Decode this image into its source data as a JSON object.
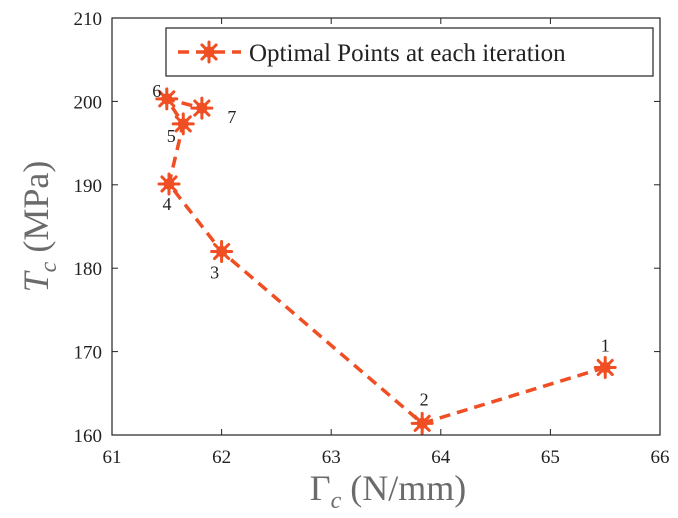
{
  "chart_data": {
    "type": "line",
    "title": "",
    "xlabel": {
      "main": "Γ",
      "sub": "c",
      "unit": " (N/mm)"
    },
    "ylabel": {
      "main": "T",
      "sub": "c",
      "unit": " (MPa)"
    },
    "xlim": [
      61,
      66
    ],
    "ylim": [
      160,
      210
    ],
    "xticks": [
      "61",
      "62",
      "63",
      "64",
      "65",
      "66"
    ],
    "yticks": [
      "160",
      "170",
      "180",
      "190",
      "200",
      "210"
    ],
    "grid": false,
    "legend_position": "top-right",
    "series": [
      {
        "name": "Optimal Points at each iteration",
        "color": "#f04e23",
        "line_style": "dashed",
        "marker": "asterisk",
        "points": [
          {
            "x": 65.5,
            "y": 168.1,
            "label": "1"
          },
          {
            "x": 63.83,
            "y": 161.4,
            "label": "2"
          },
          {
            "x": 62.0,
            "y": 182.0,
            "label": "3"
          },
          {
            "x": 61.52,
            "y": 190.1,
            "label": "4"
          },
          {
            "x": 61.65,
            "y": 197.3,
            "label": "5"
          },
          {
            "x": 61.5,
            "y": 200.3,
            "label": "6"
          },
          {
            "x": 61.82,
            "y": 199.2,
            "label": "7"
          }
        ]
      }
    ]
  }
}
